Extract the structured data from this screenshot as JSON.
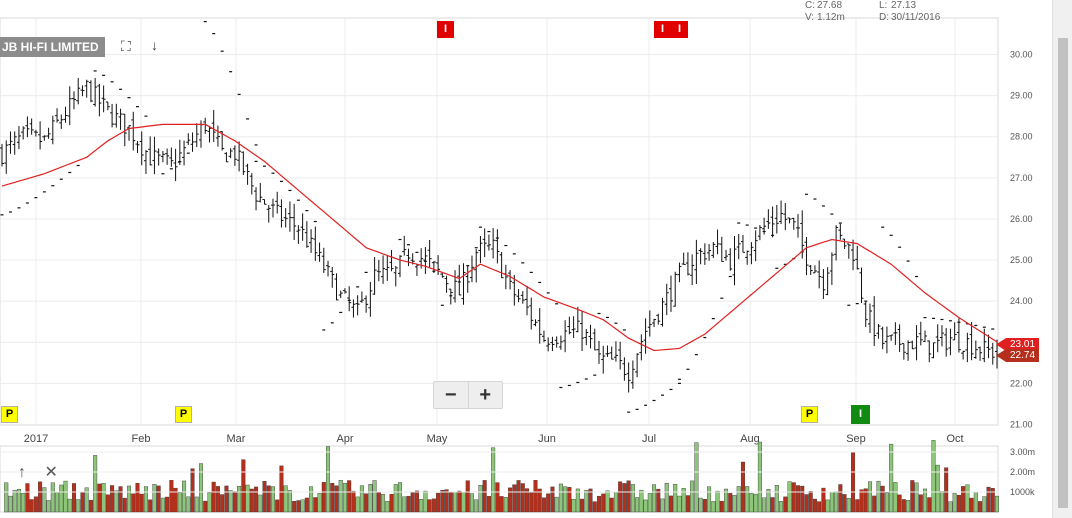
{
  "header": {
    "close_label": "C:",
    "close_value": "27.68",
    "low_label": "L:",
    "low_value": "27.13",
    "volume_label": "V:",
    "volume_value": "1.12m",
    "date_label": "D:",
    "date_value": "30/11/2016"
  },
  "title": "JB HI-FI LIMITED",
  "colors": {
    "moving_average": "#e02020",
    "volume_up": "#8dc67a",
    "volume_down": "#b5301c",
    "price_tag_ma": "#e02020",
    "price_tag_last": "#b5301c"
  },
  "icons": [
    "expand-icon",
    "arrow-down-icon",
    "arrow-up-icon",
    "close-icon"
  ],
  "zoom": {
    "minus": "−",
    "plus": "+"
  },
  "price_tags": {
    "ma": "23.01",
    "last": "22.74"
  },
  "flags": [
    {
      "label": "I",
      "color": "red",
      "month_pos": "May"
    },
    {
      "label": "I",
      "color": "red",
      "month_pos": "Jul"
    },
    {
      "label": "I",
      "color": "red",
      "month_pos": "Jul"
    },
    {
      "label": "P",
      "color": "yellow",
      "month_pos": "Jan"
    },
    {
      "label": "P",
      "color": "yellow",
      "month_pos": "Feb"
    },
    {
      "label": "P",
      "color": "yellow",
      "month_pos": "Aug"
    },
    {
      "label": "I",
      "color": "green",
      "month_pos": "Sep"
    }
  ],
  "chart_data": {
    "type": "ohlc",
    "title": "JB HI-FI LIMITED",
    "x_tick_labels": [
      "2017",
      "Feb",
      "Mar",
      "Apr",
      "May",
      "Jun",
      "Jul",
      "Aug",
      "Sep",
      "Oct"
    ],
    "y_tick_labels": [
      "21.00",
      "22.00",
      "23.00",
      "24.00",
      "25.00",
      "26.00",
      "27.00",
      "28.00",
      "29.00",
      "30.00"
    ],
    "ylim": [
      21.0,
      30.9
    ],
    "volume_tick_labels": [
      "3.00m",
      "2.00m",
      "1000k"
    ],
    "volume_ylim": [
      0,
      3.3
    ],
    "close_anchors": [
      [
        0,
        27.6
      ],
      [
        5,
        28.0
      ],
      [
        10,
        27.9
      ],
      [
        15,
        28.6
      ],
      [
        20,
        29.2
      ],
      [
        25,
        28.6
      ],
      [
        30,
        28.2
      ],
      [
        35,
        27.5
      ],
      [
        40,
        27.3
      ],
      [
        45,
        27.9
      ],
      [
        48,
        28.3
      ],
      [
        52,
        27.6
      ],
      [
        55,
        27.6
      ],
      [
        60,
        26.6
      ],
      [
        65,
        26.1
      ],
      [
        70,
        25.8
      ],
      [
        75,
        25.0
      ],
      [
        80,
        24.1
      ],
      [
        84,
        23.7
      ],
      [
        88,
        24.6
      ],
      [
        93,
        24.7
      ],
      [
        96,
        25.2
      ],
      [
        100,
        25.0
      ],
      [
        104,
        24.6
      ],
      [
        108,
        24.2
      ],
      [
        112,
        25.2
      ],
      [
        116,
        25.3
      ],
      [
        120,
        24.3
      ],
      [
        124,
        23.8
      ],
      [
        128,
        23.1
      ],
      [
        132,
        23.2
      ],
      [
        137,
        23.3
      ],
      [
        141,
        22.6
      ],
      [
        145,
        22.5
      ],
      [
        148,
        22.3
      ],
      [
        152,
        23.3
      ],
      [
        156,
        23.9
      ],
      [
        160,
        24.6
      ],
      [
        164,
        25.1
      ],
      [
        168,
        25.3
      ],
      [
        172,
        25.0
      ],
      [
        176,
        25.4
      ],
      [
        180,
        25.8
      ],
      [
        184,
        26.1
      ],
      [
        187,
        25.8
      ],
      [
        190,
        25.1
      ],
      [
        194,
        24.5
      ],
      [
        197,
        25.6
      ],
      [
        201,
        25.2
      ],
      [
        204,
        23.7
      ],
      [
        208,
        23.0
      ],
      [
        212,
        23.0
      ],
      [
        216,
        23.0
      ],
      [
        220,
        22.9
      ],
      [
        224,
        23.1
      ],
      [
        228,
        23.0
      ],
      [
        232,
        22.8
      ],
      [
        235,
        22.74
      ]
    ],
    "moving_average_anchors": [
      [
        0,
        26.8
      ],
      [
        10,
        27.1
      ],
      [
        20,
        27.5
      ],
      [
        25,
        27.9
      ],
      [
        30,
        28.2
      ],
      [
        38,
        28.3
      ],
      [
        48,
        28.3
      ],
      [
        55,
        27.9
      ],
      [
        62,
        27.4
      ],
      [
        70,
        26.7
      ],
      [
        78,
        26.0
      ],
      [
        86,
        25.3
      ],
      [
        94,
        25.0
      ],
      [
        100,
        24.85
      ],
      [
        108,
        24.55
      ],
      [
        113,
        24.9
      ],
      [
        120,
        24.6
      ],
      [
        128,
        24.1
      ],
      [
        136,
        23.8
      ],
      [
        142,
        23.55
      ],
      [
        148,
        23.1
      ],
      [
        154,
        22.8
      ],
      [
        160,
        22.85
      ],
      [
        166,
        23.2
      ],
      [
        174,
        23.9
      ],
      [
        182,
        24.6
      ],
      [
        190,
        25.3
      ],
      [
        196,
        25.5
      ],
      [
        202,
        25.4
      ],
      [
        210,
        24.9
      ],
      [
        218,
        24.2
      ],
      [
        226,
        23.6
      ],
      [
        235,
        23.01
      ]
    ],
    "parabolic_sar_segments": [
      {
        "start": 0,
        "end": 18,
        "from": 26.1,
        "to": 27.3
      },
      {
        "start": 22,
        "end": 34,
        "from": 29.6,
        "to": 28.5
      },
      {
        "start": 38,
        "end": 44,
        "from": 27.1,
        "to": 27.6
      },
      {
        "start": 48,
        "end": 60,
        "from": 30.8,
        "to": 27.8
      },
      {
        "start": 60,
        "end": 75,
        "from": 27.4,
        "to": 25.8
      },
      {
        "start": 76,
        "end": 86,
        "from": 23.3,
        "to": 24.7
      },
      {
        "start": 94,
        "end": 103,
        "from": 25.5,
        "to": 24.6
      },
      {
        "start": 104,
        "end": 112,
        "from": 23.9,
        "to": 25.3
      },
      {
        "start": 113,
        "end": 132,
        "from": 25.8,
        "to": 23.8
      },
      {
        "start": 132,
        "end": 140,
        "from": 21.9,
        "to": 22.2
      },
      {
        "start": 141,
        "end": 147,
        "from": 23.7,
        "to": 23.3
      },
      {
        "start": 148,
        "end": 160,
        "from": 21.3,
        "to": 22.0
      },
      {
        "start": 160,
        "end": 172,
        "from": 22.1,
        "to": 24.6
      },
      {
        "start": 174,
        "end": 182,
        "from": 25.9,
        "to": 25.6
      },
      {
        "start": 183,
        "end": 189,
        "from": 24.8,
        "to": 25.2
      },
      {
        "start": 190,
        "end": 198,
        "from": 26.6,
        "to": 25.9
      },
      {
        "start": 200,
        "end": 204,
        "from": 23.9,
        "to": 24.0
      },
      {
        "start": 208,
        "end": 216,
        "from": 25.8,
        "to": 24.6
      },
      {
        "start": 218,
        "end": 235,
        "from": 23.6,
        "to": 23.3
      }
    ]
  }
}
